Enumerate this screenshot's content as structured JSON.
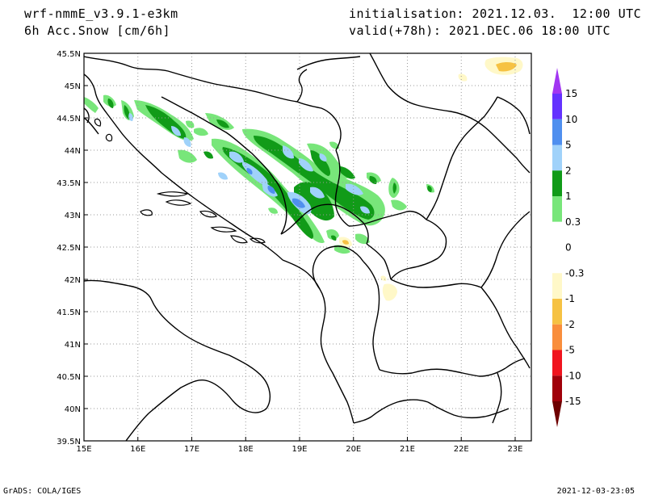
{
  "header": {
    "model": "wrf-nmmE_v3.9.1-e3km",
    "field": "6h Acc.Snow [cm/6h]",
    "init": "initialisation: 2021.12.03.  12:00 UTC",
    "valid": "valid(+78h): 2021.DEC.06 18:00 UTC"
  },
  "footer": {
    "credit": "GrADS: COLA/IGES",
    "timestamp": "2021-12-03-23:05"
  },
  "map": {
    "lon_ticks": [
      "15E",
      "16E",
      "17E",
      "18E",
      "19E",
      "20E",
      "21E",
      "22E",
      "23E"
    ],
    "lat_ticks": [
      "39.5N",
      "40N",
      "40.5N",
      "41N",
      "41.5N",
      "42N",
      "42.5N",
      "43N",
      "43.5N",
      "44N",
      "44.5N",
      "45N",
      "45.5N"
    ],
    "lon_range": [
      15,
      23.3
    ],
    "lat_range": [
      39.5,
      45.5
    ]
  },
  "colorbar": {
    "labels": [
      "15",
      "10",
      "5",
      "2",
      "1",
      "0.3",
      "0",
      "-0.3",
      "-1",
      "-2",
      "-5",
      "-10",
      "-15"
    ],
    "colors": [
      "#6432ff",
      "#4f8fef",
      "#a0d2fa",
      "#119b18",
      "#78e67a",
      "#ffffff",
      "#ffffff",
      "#fff8c8",
      "#f6c243",
      "#f98e3c",
      "#f0141e",
      "#a0000a"
    ],
    "top_arrow_color": "#a236f2",
    "bottom_arrow_color": "#6e0000"
  },
  "colors": {
    "snow_light": "#78e67a",
    "snow_mid": "#119b18",
    "snow_blue": "#a0d2fa",
    "snow_dblue": "#4f8fef",
    "melt_light": "#fff8c8",
    "melt_orange": "#f6c243"
  }
}
